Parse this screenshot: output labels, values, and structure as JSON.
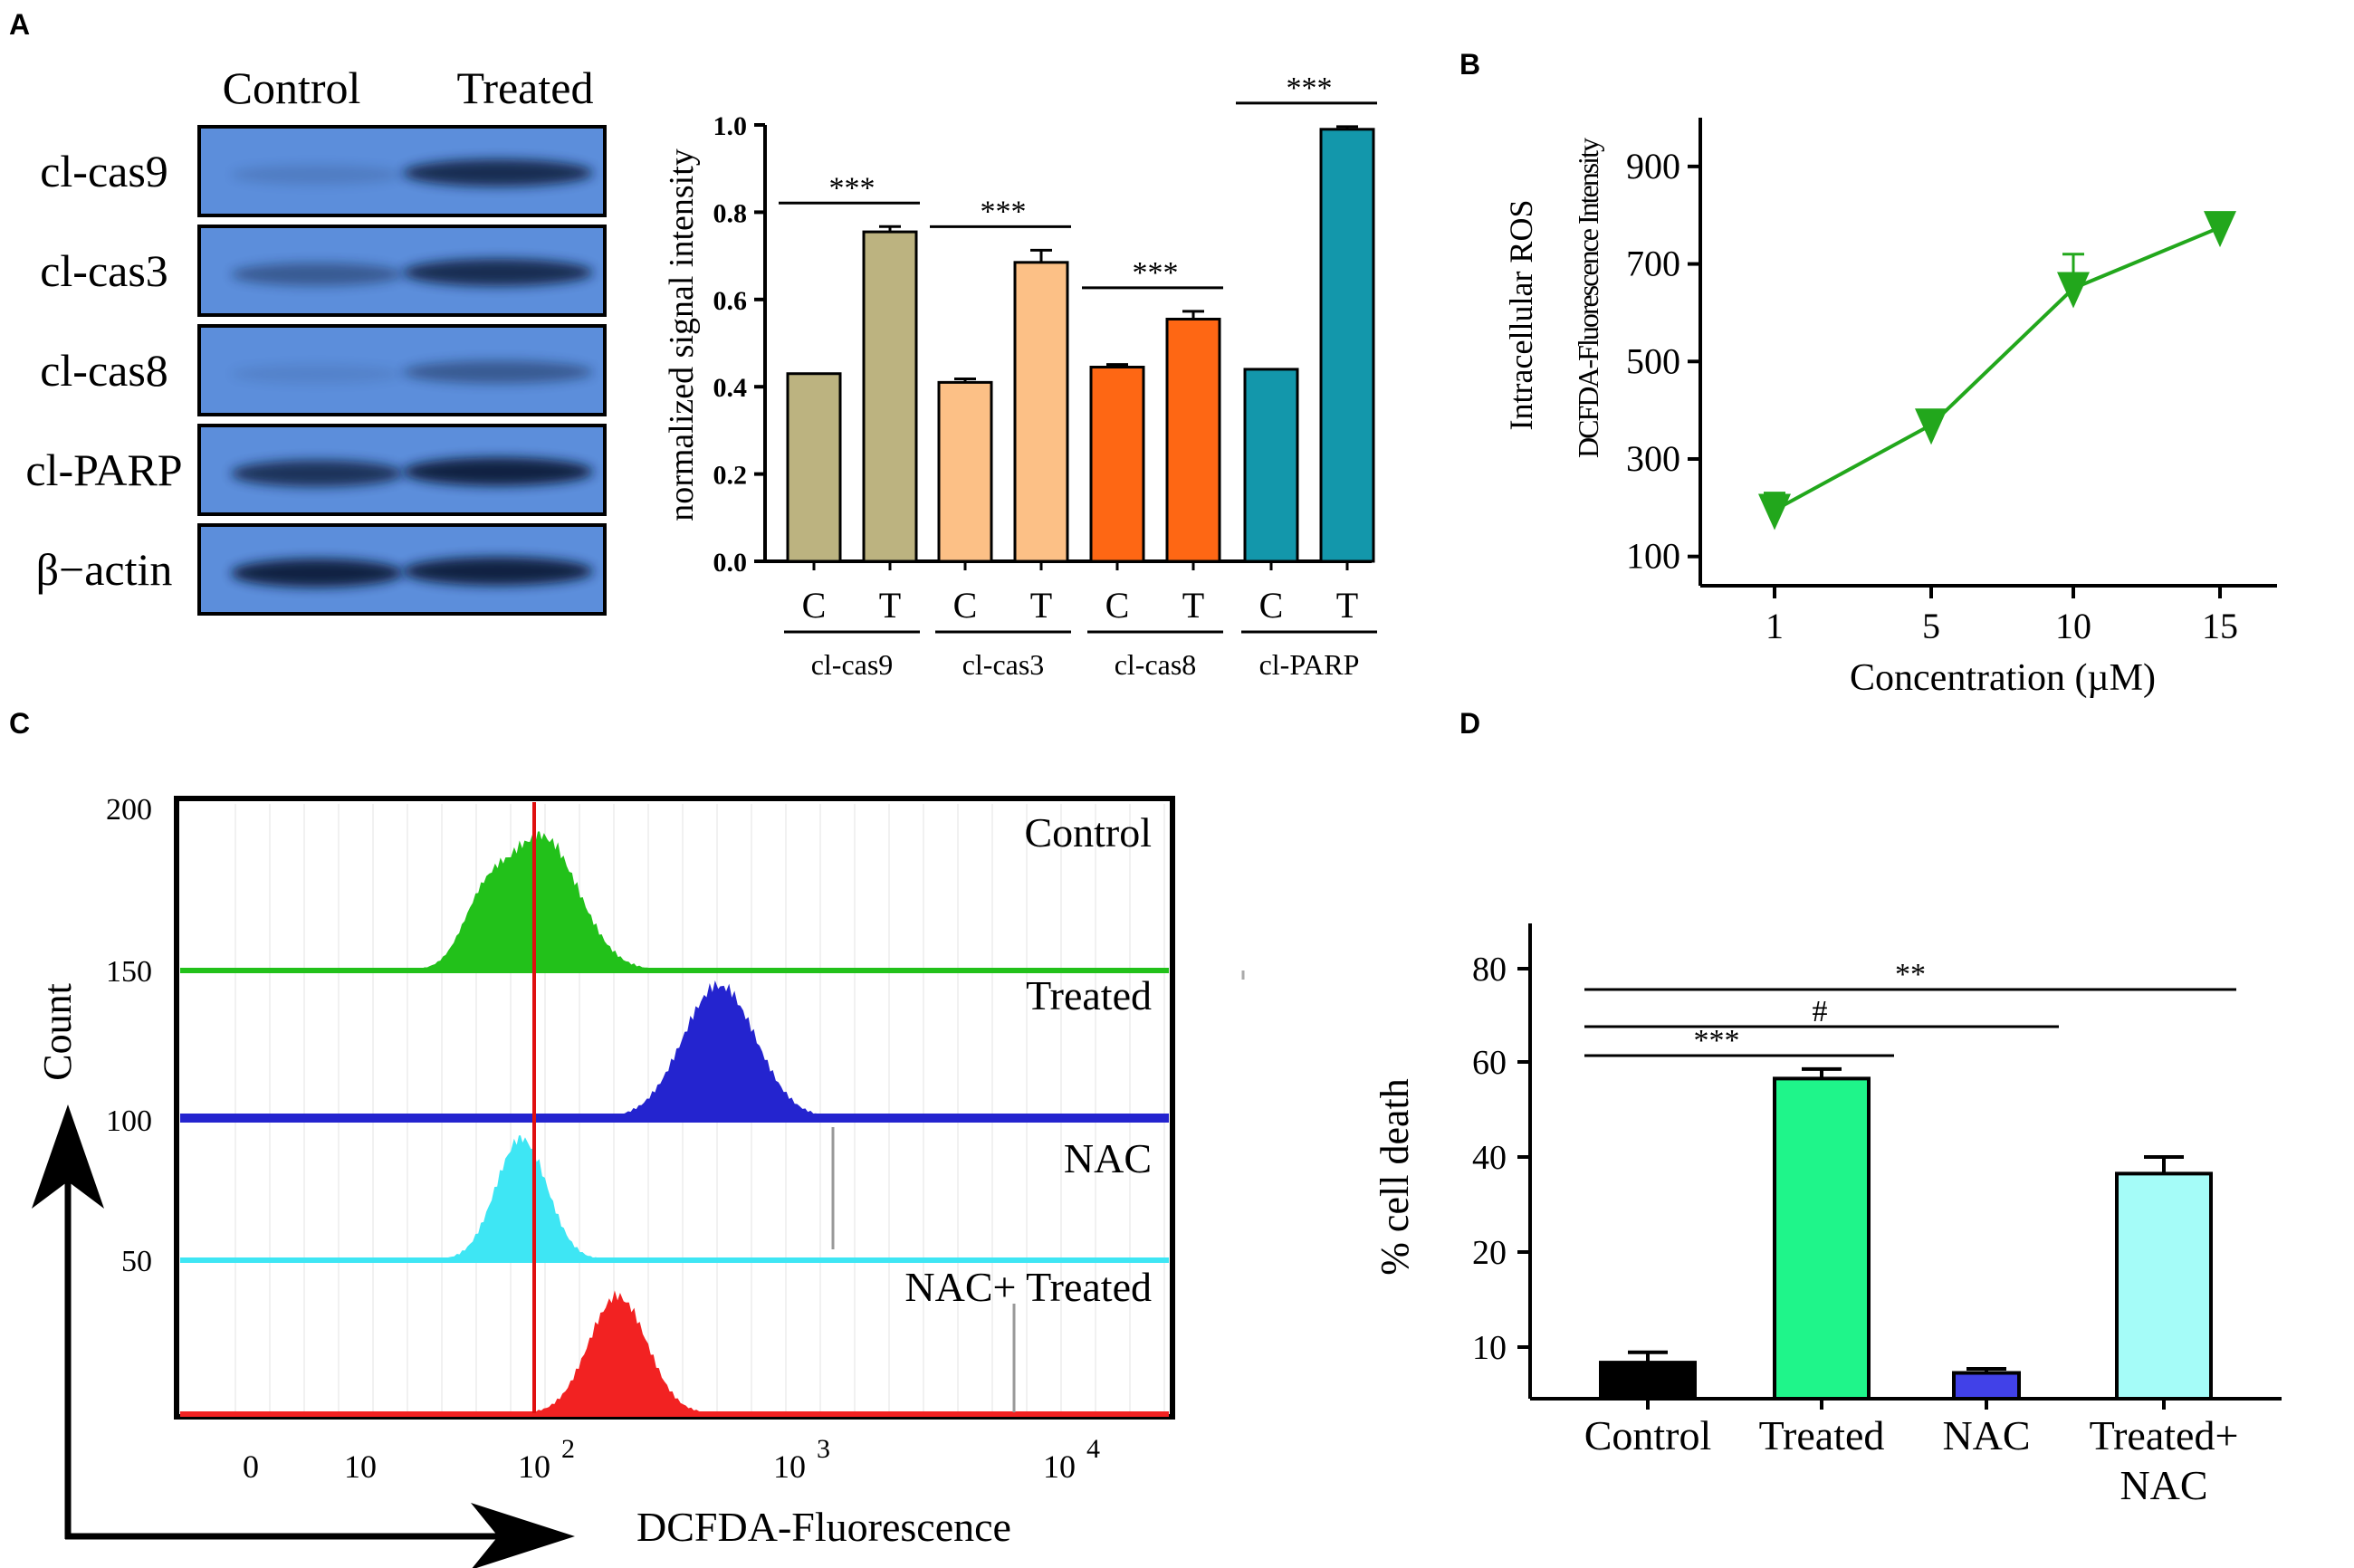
{
  "panel_letters": [
    "A",
    "B",
    "C",
    "D"
  ],
  "blot": {
    "headers": [
      "Control",
      "Treated"
    ],
    "bands": [
      {
        "label": "cl-cas9",
        "control": 0.15,
        "treated": 0.85
      },
      {
        "label": "cl-cas3",
        "control": 0.45,
        "treated": 0.85
      },
      {
        "label": "cl-cas8",
        "control": 0.1,
        "treated": 0.45
      },
      {
        "label": "cl-PARP",
        "control": 0.8,
        "treated": 0.95
      },
      {
        "label": "β−actin",
        "control": 0.95,
        "treated": 0.95
      }
    ]
  },
  "colors": {
    "blot_bg": "#5c8edb",
    "cas9": "#bcb380",
    "cas3": "#fcc086",
    "cas8": "#fe6714",
    "parp": "#1397ab",
    "roslinemarker": "#22a71c",
    "hist_control": "#22c11a",
    "hist_treated": "#2424cf",
    "hist_nac": "#3ee6f4",
    "hist_nac_treated": "#f22222",
    "gate_line": "#e01010",
    "d_control": "#000000",
    "d_treated": "#1ff58a",
    "d_nac": "#4141e8",
    "d_treated_nac": "#a5fcf8"
  },
  "chart_data": [
    {
      "id": "A",
      "type": "bar",
      "ylabel": "normalized signal intensity",
      "ylim": [
        0,
        1.0
      ],
      "yticks": [
        "0.0",
        "0.2",
        "0.4",
        "0.6",
        "0.8",
        "1.0"
      ],
      "groups": [
        {
          "name": "cl-cas9",
          "color_key": "cas9",
          "bars": [
            {
              "label": "C",
              "value": 0.43,
              "err": 0.0
            },
            {
              "label": "T",
              "value": 0.755,
              "err": 0.012
            }
          ],
          "sig": "***"
        },
        {
          "name": "cl-cas3",
          "color_key": "cas3",
          "bars": [
            {
              "label": "C",
              "value": 0.41,
              "err": 0.008
            },
            {
              "label": "T",
              "value": 0.685,
              "err": 0.028
            }
          ],
          "sig": "***"
        },
        {
          "name": "cl-cas8",
          "color_key": "cas8",
          "bars": [
            {
              "label": "C",
              "value": 0.445,
              "err": 0.006
            },
            {
              "label": "T",
              "value": 0.555,
              "err": 0.018
            }
          ],
          "sig": "***"
        },
        {
          "name": "cl-PARP",
          "color_key": "parp",
          "bars": [
            {
              "label": "C",
              "value": 0.44,
              "err": 0.0
            },
            {
              "label": "T",
              "value": 0.99,
              "err": 0.006
            }
          ],
          "sig": "***"
        }
      ]
    },
    {
      "id": "B",
      "type": "line",
      "title": "",
      "xlabel": "Concentration (µM)",
      "ylabel_lines": [
        "Intracellular ROS",
        "DCFDA-Fluorescence Intensity"
      ],
      "x": [
        1,
        5,
        10,
        15
      ],
      "x_tick_labels": [
        "1",
        "5",
        "10",
        "15"
      ],
      "y": [
        195,
        370,
        650,
        775
      ],
      "err": [
        35,
        30,
        70,
        30
      ],
      "yticks": [
        "100",
        "300",
        "500",
        "700",
        "900"
      ],
      "ylim": [
        40,
        1000
      ]
    },
    {
      "id": "C",
      "type": "area",
      "xlabel": "DCFDA-Fluorescence",
      "ylabel": "Count",
      "y_tick_labels": [
        "200",
        "150",
        "100",
        "50"
      ],
      "x_tick_labels": [
        "0",
        "10",
        "10",
        "10",
        "10"
      ],
      "x_tick_exponents": [
        "",
        "",
        "2",
        "3",
        "4"
      ],
      "gate_log10": 2.0,
      "series": [
        {
          "name": "Control",
          "color_key": "hist_control",
          "peak_log10": 2.03,
          "width": 0.2,
          "height": 0.88,
          "shoulder": [
            1.8,
            0.35
          ]
        },
        {
          "name": "Treated",
          "color_key": "hist_treated",
          "peak_log10": 2.73,
          "width": 0.2,
          "height": 0.9,
          "shoulder": null
        },
        {
          "name": "NAC",
          "color_key": "hist_nac",
          "peak_log10": 1.95,
          "width": 0.14,
          "height": 0.88,
          "shoulder": null
        },
        {
          "name": "NAC+ Treated",
          "color_key": "hist_nac_treated",
          "peak_log10": 2.33,
          "width": 0.16,
          "height": 0.88,
          "shoulder": null
        }
      ]
    },
    {
      "id": "D",
      "type": "bar",
      "ylabel": "% cell death",
      "yticks": [
        "10",
        "20",
        "40",
        "60",
        "80"
      ],
      "ylim": [
        5,
        85
      ],
      "categories": [
        "Control",
        "Treated",
        "NAC",
        "Treated+\nNAC"
      ],
      "category_lines": [
        [
          "Control"
        ],
        [
          "Treated"
        ],
        [
          "NAC"
        ],
        [
          "Treated+",
          "NAC"
        ]
      ],
      "values": [
        8.5,
        56.5,
        7.5,
        36.5
      ],
      "err": [
        1.0,
        2.0,
        0.4,
        3.5
      ],
      "color_keys": [
        "d_control",
        "d_treated",
        "d_nac",
        "d_treated_nac"
      ],
      "comparisons": [
        {
          "from": 0,
          "to": 1,
          "label": "***"
        },
        {
          "from": 0,
          "to": 2,
          "label": "#"
        },
        {
          "from": 0,
          "to": 3,
          "label": "**"
        }
      ]
    }
  ]
}
